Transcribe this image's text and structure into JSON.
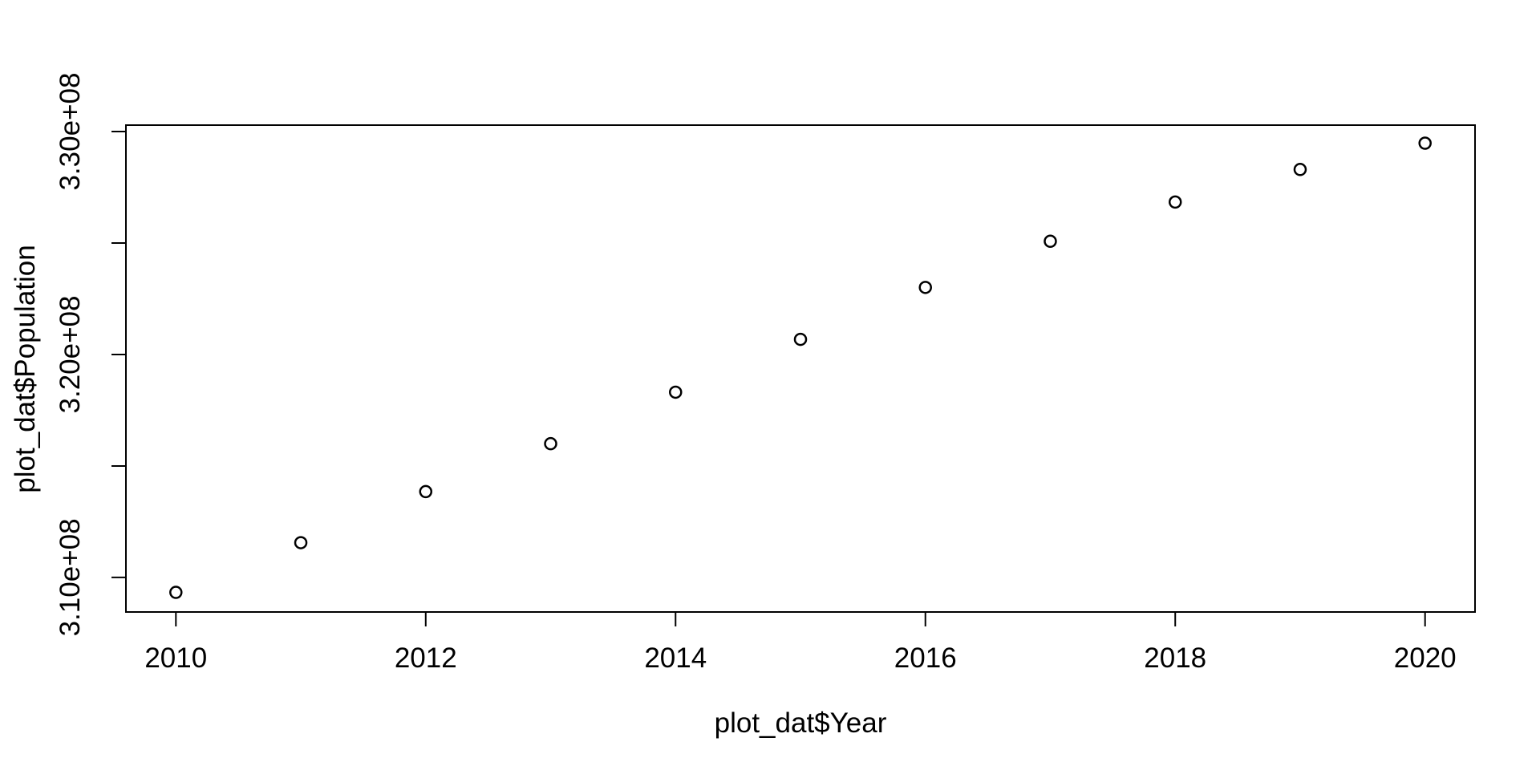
{
  "figure": {
    "background_color": "#ffffff",
    "foreground_color": "#000000"
  },
  "chart_data": {
    "type": "scatter",
    "title": "",
    "xlabel": "plot_dat$Year",
    "ylabel": "plot_dat$Population",
    "x": [
      2010,
      2011,
      2012,
      2013,
      2014,
      2015,
      2016,
      2017,
      2018,
      2019,
      2020
    ],
    "y": [
      309330000,
      311560000,
      313850000,
      316000000,
      318310000,
      320680000,
      323010000,
      325080000,
      326840000,
      328300000,
      329480000
    ],
    "xlim": [
      2009.6,
      2020.4
    ],
    "ylim": [
      308450000,
      330290000
    ],
    "xticks": {
      "values": [
        2010,
        2012,
        2014,
        2016,
        2018,
        2020
      ],
      "labels": [
        "2010",
        "2012",
        "2014",
        "2016",
        "2018",
        "2020"
      ]
    },
    "yticks": {
      "values": [
        310000000,
        315000000,
        320000000,
        325000000,
        330000000
      ],
      "labels": [
        "3.10e+08",
        "",
        "3.20e+08",
        "",
        "3.30e+08"
      ]
    },
    "marker": "open-circle",
    "grid": false,
    "legend": null
  }
}
